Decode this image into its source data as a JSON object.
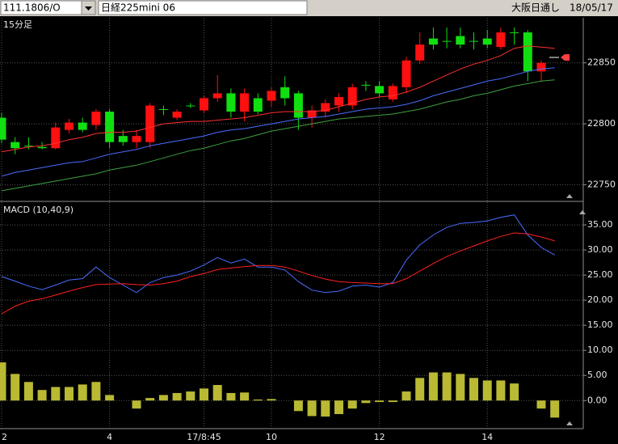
{
  "toolbar": {
    "symbol": "111.1806/O",
    "instrument": "日経225mini 06",
    "market": "大阪日通し",
    "date": "18/05/17"
  },
  "chart_data": [
    {
      "type": "candlestick",
      "title": "15分足",
      "categories": [
        "2",
        null,
        null,
        null,
        null,
        null,
        null,
        null,
        "4",
        null,
        null,
        null,
        null,
        null,
        null,
        "17/8:45",
        null,
        null,
        null,
        null,
        "10",
        null,
        null,
        null,
        null,
        null,
        null,
        null,
        "12",
        null,
        null,
        null,
        null,
        null,
        null,
        null,
        "14",
        null,
        null,
        null,
        null,
        null
      ],
      "open": [
        22805,
        22785,
        22782,
        22781,
        22780,
        22795,
        22801,
        22799,
        22810,
        22790,
        22785,
        22785,
        22812,
        22805,
        22815,
        22811,
        22821,
        22825,
        22810,
        22821,
        22819,
        22830,
        22825,
        22805,
        22810,
        22815,
        22815,
        22832,
        22831,
        22820,
        22830,
        22852,
        22870,
        22868,
        22872,
        22868,
        22870,
        22863,
        22875,
        22875,
        22843,
        null
      ],
      "high": [
        22809,
        22789,
        22789,
        22785,
        22801,
        22804,
        22805,
        22812,
        22812,
        22795,
        22795,
        22817,
        22815,
        22812,
        22817,
        22823,
        22840,
        22829,
        22829,
        22825,
        22830,
        22839,
        22827,
        22815,
        22820,
        22825,
        22833,
        22835,
        22835,
        22833,
        22855,
        22875,
        22879,
        22879,
        22879,
        22875,
        22877,
        22879,
        22879,
        22877,
        22852,
        null
      ],
      "low": [
        22784,
        22775,
        22779,
        22779,
        22779,
        22792,
        22793,
        22795,
        22780,
        22782,
        22780,
        22780,
        22807,
        22803,
        22813,
        22809,
        22818,
        22805,
        22802,
        22808,
        22814,
        22815,
        22795,
        22797,
        22805,
        22810,
        22812,
        22827,
        22822,
        22818,
        22825,
        22849,
        22861,
        22862,
        22862,
        22861,
        22862,
        22861,
        22865,
        22835,
        22835,
        null
      ],
      "close": [
        22787,
        22780,
        22782,
        22780,
        22797,
        22801,
        22795,
        22810,
        22785,
        22785,
        22790,
        22815,
        22812,
        22810,
        22815,
        22821,
        22825,
        22810,
        22825,
        22810,
        22827,
        22821,
        22805,
        22811,
        22817,
        22822,
        22830,
        22832,
        22825,
        22831,
        22852,
        22865,
        22865,
        22868,
        22865,
        22868,
        22865,
        22875,
        22875,
        22843,
        22850,
        null
      ],
      "up_color": "#ff1010",
      "down_color": "#10e010",
      "series": [
        {
          "color": "#ff3030",
          "values": [
            22777,
            22779,
            22781,
            22782,
            22784,
            22787,
            22789,
            22792,
            22793,
            22793,
            22794,
            22797,
            22800,
            22801,
            22802,
            22802,
            22803,
            22804,
            22805,
            22807,
            22809,
            22810,
            22810,
            22810,
            22811,
            22814,
            22817,
            22820,
            22822,
            22823,
            22826,
            22830,
            22835,
            22840,
            22845,
            22849,
            22852,
            22856,
            22862,
            22864,
            22863,
            22862
          ]
        },
        {
          "color": "#4a6cff",
          "values": [
            22757,
            22760,
            22762,
            22764,
            22766,
            22768,
            22769,
            22772,
            22775,
            22777,
            22779,
            22782,
            22784,
            22786,
            22788,
            22790,
            22793,
            22795,
            22796,
            22798,
            22800,
            22802,
            22804,
            22805,
            22806,
            22808,
            22810,
            22812,
            22813,
            22814,
            22816,
            22819,
            22823,
            22826,
            22829,
            22832,
            22835,
            22837,
            22840,
            22843,
            22845,
            22846
          ]
        },
        {
          "color": "#3fa03f",
          "values": [
            22745,
            22747,
            22749,
            22751,
            22753,
            22755,
            22757,
            22759,
            22762,
            22764,
            22766,
            22769,
            22772,
            22775,
            22778,
            22780,
            22783,
            22786,
            22788,
            22791,
            22794,
            22796,
            22798,
            22800,
            22802,
            22804,
            22805,
            22806,
            22807,
            22808,
            22810,
            22812,
            22815,
            22818,
            22820,
            22823,
            22825,
            22828,
            22831,
            22833,
            22835,
            22836
          ]
        }
      ],
      "ylim": [
        22737,
        22887
      ],
      "yticks": [
        22750,
        22800,
        22850
      ],
      "grid": true
    },
    {
      "type": "macd",
      "title": "MACD (10,40,9)",
      "series": [
        {
          "type": "line",
          "color": "#4a6cff",
          "values": [
            24.7,
            23.8,
            22.8,
            22.1,
            23.0,
            24.0,
            24.3,
            26.6,
            24.5,
            23.0,
            21.5,
            23.5,
            24.5,
            25.0,
            25.8,
            27.0,
            28.5,
            27.4,
            28.2,
            26.6,
            26.6,
            26.0,
            23.7,
            22.0,
            21.5,
            21.8,
            22.8,
            23.0,
            22.6,
            23.5,
            28.0,
            31.0,
            33.0,
            34.5,
            35.3,
            35.5,
            35.8,
            36.5,
            37.0,
            33.0,
            30.5,
            29.0
          ]
        },
        {
          "type": "line",
          "color": "#ff2020",
          "values": [
            17.3,
            18.8,
            19.8,
            20.3,
            21.0,
            21.8,
            22.5,
            23.1,
            23.2,
            23.3,
            23.1,
            23.0,
            23.3,
            23.8,
            24.7,
            25.3,
            26.1,
            26.4,
            26.7,
            26.9,
            26.9,
            26.6,
            25.8,
            24.9,
            24.2,
            23.7,
            23.5,
            23.4,
            23.3,
            23.3,
            24.3,
            25.8,
            27.3,
            28.7,
            29.8,
            30.8,
            31.8,
            32.7,
            33.4,
            33.2,
            32.6,
            31.8
          ]
        },
        {
          "type": "bar",
          "color": "#b9b934",
          "values": [
            7.6,
            5.3,
            3.7,
            2.1,
            2.7,
            2.7,
            3.2,
            3.7,
            1.1,
            0,
            -1.6,
            0.5,
            1.1,
            1.5,
            1.8,
            2.4,
            3.1,
            1.5,
            1.6,
            0.2,
            0.3,
            0,
            -2.1,
            -3.1,
            -3.2,
            -2.7,
            -1.6,
            -0.5,
            -0.3,
            -0.3,
            1.8,
            4.5,
            5.6,
            5.6,
            5.3,
            4.5,
            4.0,
            4.0,
            3.4,
            0,
            -1.6,
            -3.4
          ]
        }
      ],
      "ylim": [
        -5.6,
        39.2
      ],
      "yticks": [
        {
          "value": 0,
          "label": "0.00"
        },
        {
          "value": 5,
          "label": "5.00"
        },
        {
          "value": 10,
          "label": "10.00"
        },
        {
          "value": 15,
          "label": "15.00"
        },
        {
          "value": 20,
          "label": "20.00"
        },
        {
          "value": 25,
          "label": "25.00"
        },
        {
          "value": 30,
          "label": "30.00"
        },
        {
          "value": 35,
          "label": "35.00"
        }
      ],
      "grid": true
    }
  ]
}
